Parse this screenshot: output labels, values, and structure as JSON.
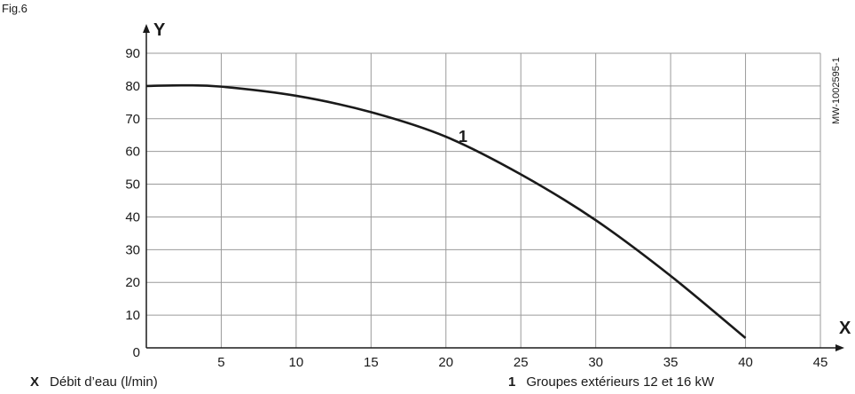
{
  "figure_label": "Fig.6",
  "document_code": "MW-1002595-1",
  "legend": [
    {
      "key": "X",
      "text": "Débit d’eau (l/min)"
    },
    {
      "key": "1",
      "text": "Groupes extérieurs 12 et 16 kW"
    }
  ],
  "chart_data": {
    "type": "line",
    "xlabel": "X",
    "ylabel": "Y",
    "xlim": [
      0,
      45
    ],
    "ylim": [
      0,
      90
    ],
    "xticks": [
      5,
      10,
      15,
      20,
      25,
      30,
      35,
      40,
      45
    ],
    "yticks": [
      0,
      10,
      20,
      30,
      40,
      50,
      60,
      70,
      80,
      90
    ],
    "grid": true,
    "series": [
      {
        "name": "1",
        "x": [
          0,
          2.5,
          5,
          10,
          15,
          20,
          25,
          30,
          35,
          40
        ],
        "y": [
          80,
          80.2,
          79.8,
          77,
          72,
          64.5,
          53,
          39,
          22,
          3
        ]
      }
    ]
  }
}
